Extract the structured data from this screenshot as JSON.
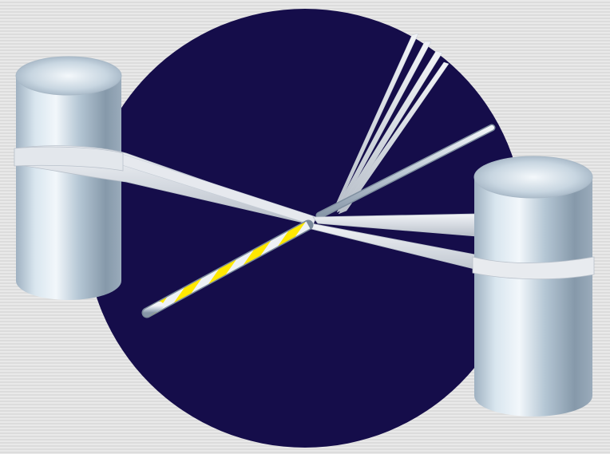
{
  "scene": {
    "colors": {
      "background": "#e4e4e4",
      "disc": "#150d4a",
      "post": "#b8cad8",
      "fiber": "#d8dde4",
      "stripe_yellow": "#ffe800",
      "stripe_white": "#eef2f6"
    }
  }
}
